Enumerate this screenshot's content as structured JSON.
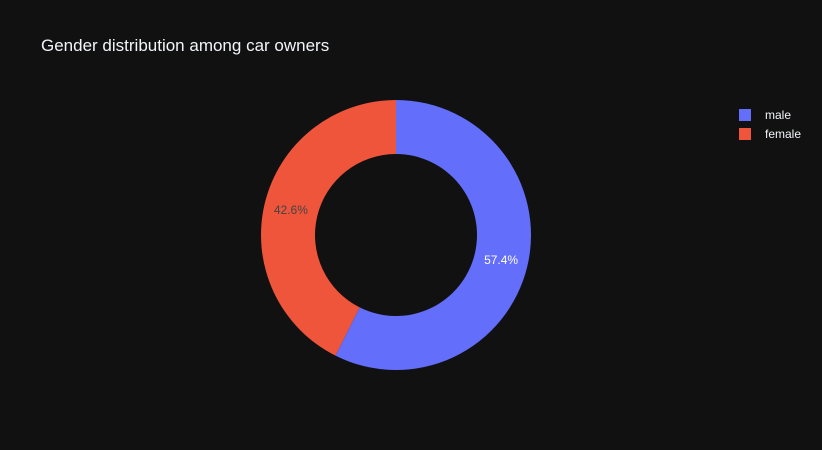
{
  "chart_data": {
    "type": "pie",
    "title": "Gender distribution among car owners",
    "hole": true,
    "legend_position": "top-right",
    "background": "#111111",
    "slices": [
      {
        "label": "male",
        "value": 57.4,
        "display": "57.4%",
        "color": "#636efa",
        "label_color": "#ffffff"
      },
      {
        "label": "female",
        "value": 42.6,
        "display": "42.6%",
        "color": "#ef553b",
        "label_color": "#444444"
      }
    ]
  }
}
